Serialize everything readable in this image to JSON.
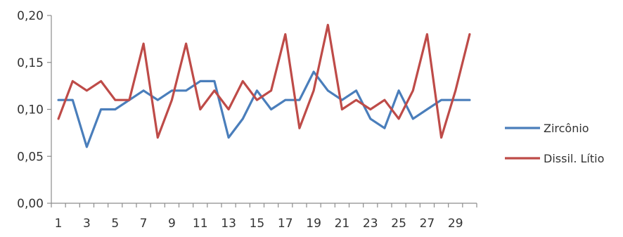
{
  "chart_data": {
    "type": "line",
    "title": "",
    "xlabel": "",
    "ylabel": "",
    "x": [
      1,
      2,
      3,
      4,
      5,
      6,
      7,
      8,
      9,
      10,
      11,
      12,
      13,
      14,
      15,
      16,
      17,
      18,
      19,
      20,
      21,
      22,
      23,
      24,
      25,
      26,
      27,
      28,
      29,
      30
    ],
    "x_tick_labels": [
      "1",
      "3",
      "5",
      "7",
      "9",
      "11",
      "13",
      "15",
      "17",
      "19",
      "21",
      "23",
      "25",
      "27",
      "29"
    ],
    "y_tick_labels": [
      "0,00",
      "0,05",
      "0,10",
      "0,15",
      "0,20"
    ],
    "ylim": [
      0,
      0.2
    ],
    "grid": false,
    "legend_position": "right",
    "series": [
      {
        "name": "Zircônio",
        "color": "#4a7ebb",
        "values": [
          0.11,
          0.11,
          0.06,
          0.1,
          0.1,
          0.11,
          0.12,
          0.11,
          0.12,
          0.12,
          0.13,
          0.13,
          0.07,
          0.09,
          0.12,
          0.1,
          0.11,
          0.11,
          0.14,
          0.12,
          0.11,
          0.12,
          0.09,
          0.08,
          0.12,
          0.09,
          0.1,
          0.11,
          0.11,
          0.11
        ]
      },
      {
        "name": "Dissil. Lítio",
        "color": "#be4b48",
        "values": [
          0.09,
          0.13,
          0.12,
          0.13,
          0.11,
          0.11,
          0.17,
          0.07,
          0.11,
          0.17,
          0.1,
          0.12,
          0.1,
          0.13,
          0.11,
          0.12,
          0.18,
          0.08,
          0.12,
          0.19,
          0.1,
          0.11,
          0.1,
          0.11,
          0.09,
          0.12,
          0.18,
          0.07,
          0.12,
          0.18
        ]
      }
    ]
  }
}
